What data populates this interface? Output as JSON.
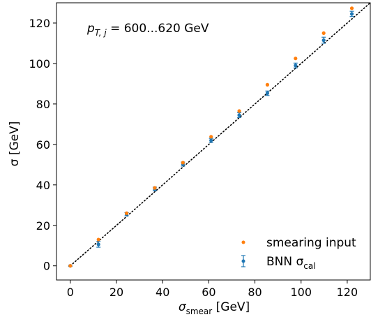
{
  "chart_data": {
    "type": "scatter",
    "annotation": {
      "main": "p",
      "sub": "T, j",
      "rest": " = 600...620 GeV"
    },
    "xlabel": {
      "main": "σ",
      "sub": "smear",
      "rest": " [GeV]"
    },
    "ylabel": "σ [GeV]",
    "xlim": [
      -6,
      130
    ],
    "ylim": [
      -7,
      130
    ],
    "x_ticks": [
      0,
      20,
      40,
      60,
      80,
      100,
      120
    ],
    "y_ticks": [
      0,
      20,
      40,
      60,
      80,
      100,
      120
    ],
    "x": [
      0,
      12.2,
      24.4,
      36.6,
      48.8,
      61.0,
      73.2,
      85.4,
      97.6,
      109.8,
      122.0
    ],
    "series": [
      {
        "name": "smearing input",
        "color": "#ff7f0e",
        "marker": "point",
        "values": [
          0,
          13.0,
          26.0,
          38.5,
          51.0,
          63.8,
          76.5,
          89.5,
          102.5,
          115.0,
          127.3
        ]
      },
      {
        "name": "BNN σ_cal",
        "color": "#1f77b4",
        "marker": "errorbar",
        "values": [
          0,
          10.6,
          25.5,
          38.0,
          50.3,
          62.0,
          74.5,
          85.3,
          99.0,
          111.5,
          124.5
        ],
        "errors": [
          0.3,
          1.4,
          0.8,
          0.9,
          1.0,
          1.0,
          1.2,
          1.1,
          1.2,
          1.5,
          1.3
        ]
      }
    ],
    "reference_line": {
      "style": "dotted",
      "color": "#000000",
      "x": [
        0,
        130
      ],
      "y": [
        0,
        130
      ]
    },
    "legend": {
      "placement": "lower-right",
      "entries": [
        {
          "main": "smearing input",
          "sub": ""
        },
        {
          "main": "BNN σ",
          "sub": "cal"
        }
      ]
    },
    "grid": false
  }
}
